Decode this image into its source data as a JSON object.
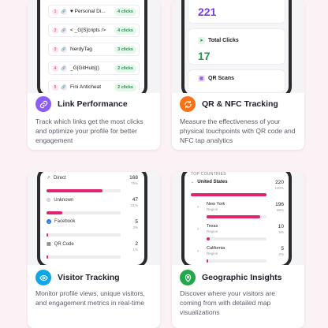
{
  "cards": {
    "link_performance": {
      "title": "Link Performance",
      "description": "Track which links get the most clicks and optimize your profile for better engagement",
      "links": [
        {
          "rank": "1",
          "name": "♥ Personal Di...",
          "clicks": "4 clicks"
        },
        {
          "rank": "2",
          "name": "< _G[S]cripts />",
          "clicks": "4 clicks"
        },
        {
          "rank": "3",
          "name": "NerdyTag",
          "clicks": "3 clicks"
        },
        {
          "rank": "4",
          "name": "_G[GitHub]()",
          "clicks": "2 clicks"
        },
        {
          "rank": "5",
          "name": "Fini Anticheat",
          "clicks": "2 clicks"
        }
      ]
    },
    "qr_nfc": {
      "title": "QR & NFC Tracking",
      "description": "Measure the effectiveness of your physical touchpoints with QR code and NFC tap analytics",
      "top_value": "221",
      "total_clicks_label": "Total Clicks",
      "total_clicks_value": "17",
      "qr_scans_label": "QR Scans"
    },
    "visitor_tracking": {
      "title": "Visitor Tracking",
      "description": "Monitor profile views, unique visitors, and engagement metrics in real-time",
      "rows": [
        {
          "label": "Direct",
          "value": "168",
          "pct": "75%",
          "fill": 0.75
        },
        {
          "label": "Unknown",
          "value": "47",
          "pct": "21%",
          "fill": 0.21
        },
        {
          "label": "Facebook",
          "value": "5",
          "pct": "2%",
          "fill": 0.02
        },
        {
          "label": "QR Code",
          "value": "2",
          "pct": "1%",
          "fill": 0.01
        }
      ]
    },
    "geographic": {
      "title": "Geographic Insights",
      "description": "Discover where your visitors are coming from with detailed map visualizations",
      "section_label": "TOP COUNTRIES",
      "country": {
        "name": "United States",
        "value": "220",
        "pct": "100%",
        "fill": 1.0
      },
      "regions": [
        {
          "name": "New York",
          "sub": "Region",
          "value": "196",
          "pct": "89%",
          "fill": 0.89
        },
        {
          "name": "Texas",
          "sub": "Region",
          "value": "10",
          "pct": "5%",
          "fill": 0.05
        },
        {
          "name": "California",
          "sub": "Region",
          "value": "5",
          "pct": "2%",
          "fill": 0.02
        }
      ]
    }
  },
  "colors": {
    "accent": "#e0246f",
    "purple_icon": "#8b5cf6",
    "orange_icon": "#f97316",
    "blue_icon": "#0ea5e9",
    "green_icon": "#22a84a",
    "purple_stat": "#7c3aed",
    "green_stat": "#1d9b4a"
  }
}
